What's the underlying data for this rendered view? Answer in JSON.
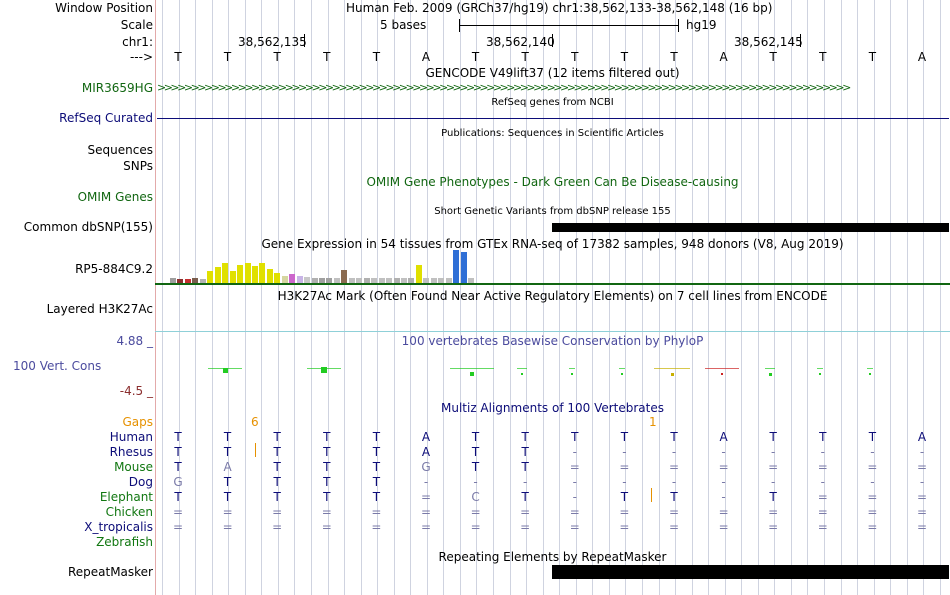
{
  "colors": {
    "accent": "#ff0000",
    "gencode": "#116611",
    "refseq": "#0c0c78",
    "conservation": "#4b4b9e",
    "gaps": "#e69100",
    "align_green": "#117711",
    "align_blue": "#0c0c78"
  },
  "header": {
    "window_position_label": "Window Position",
    "window_position_value": "Human Feb. 2009 (GRCh37/hg19)   chr1:38,562,133-38,562,148 (16 bp)",
    "scale_label": "Scale",
    "scale_value": "5 bases",
    "scale_assembly": "hg19",
    "chrom_label": "chr1:",
    "positions": [
      "38,562,135",
      "38,562,140",
      "38,562,145"
    ],
    "strand_label": "--->",
    "bases": [
      "T",
      "T",
      "T",
      "T",
      "T",
      "A",
      "T",
      "T",
      "T",
      "T",
      "T",
      "A",
      "T",
      "T",
      "T",
      "A"
    ]
  },
  "tracks": {
    "gencode": {
      "title": "GENCODE V49lift37 (12 items filtered out)",
      "label": "MIR3659HG",
      "arrows": ">>>>>>>>>>>>>>>>>>>>>>>>>>>>>>>>>>>>>>>>>>>>>>>>>>>>>>>>>>>>>>>>>>>>>>>>>>>>>>>>>>>>>>>>>>>>>>>>>>>>>>>"
    },
    "refseq": {
      "title": "RefSeq genes from NCBI",
      "label": "RefSeq Curated"
    },
    "publications": {
      "title": "Publications: Sequences in Scientific Articles",
      "label_sequences": "Sequences",
      "label_snps": "SNPs"
    },
    "omim": {
      "title": "OMIM Gene Phenotypes - Dark Green Can Be Disease-causing",
      "label": "OMIM Genes"
    },
    "dbsnp": {
      "title": "Short Genetic Variants from dbSNP release 155",
      "label": "Common dbSNP(155)"
    },
    "gtex": {
      "title": "Gene Expression in 54 tissues from GTEx RNA-seq of 17382 samples, 948 donors (V8, Aug 2019)",
      "label": "RP5-884C9.2"
    },
    "h3k27ac": {
      "title": "H3K27Ac Mark (Often Found Near Active Regulatory Elements) on 7 cell lines from ENCODE",
      "label": "Layered H3K27Ac"
    },
    "phylop": {
      "title": "100 vertebrates Basewise Conservation by PhyloP",
      "label": "100 Vert. Cons",
      "max": "4.88 _",
      "min": "-4.5 _"
    },
    "multiz": {
      "title": "Multiz Alignments of 100 Vertebrates",
      "gaps_label": "Gaps",
      "gap_count_1": "6",
      "gap_count_2": "1"
    },
    "repeatmasker": {
      "title": "Repeating Elements by RepeatMasker",
      "label": "RepeatMasker"
    }
  },
  "gtex_bars": [
    {
      "color": "#9e9e9e",
      "value": 0.14
    },
    {
      "color": "#8b2e2e",
      "value": 0.13
    },
    {
      "color": "#c42f2f",
      "value": 0.11
    },
    {
      "color": "#7a5d4e",
      "value": 0.15
    },
    {
      "color": "#b3b3b3",
      "value": 0.13
    },
    {
      "color": "#e0e000",
      "value": 0.37
    },
    {
      "color": "#e0e000",
      "value": 0.47
    },
    {
      "color": "#e0e000",
      "value": 0.6
    },
    {
      "color": "#e0e000",
      "value": 0.35
    },
    {
      "color": "#e0e000",
      "value": 0.55
    },
    {
      "color": "#e0e000",
      "value": 0.6
    },
    {
      "color": "#e0e000",
      "value": 0.5
    },
    {
      "color": "#e0e000",
      "value": 0.6
    },
    {
      "color": "#e0e000",
      "value": 0.42
    },
    {
      "color": "#e0e000",
      "value": 0.3
    },
    {
      "color": "#d6d6a0",
      "value": 0.2
    },
    {
      "color": "#cc66cc",
      "value": 0.28
    },
    {
      "color": "#c8b4e6",
      "value": 0.22
    },
    {
      "color": "#c8c8c8",
      "value": 0.17
    },
    {
      "color": "#b0b0b0",
      "value": 0.15
    },
    {
      "color": "#a0a0a0",
      "value": 0.16
    },
    {
      "color": "#a0a0a0",
      "value": 0.14
    },
    {
      "color": "#c0c0c0",
      "value": 0.16
    },
    {
      "color": "#8b6b50",
      "value": 0.4
    },
    {
      "color": "#c0c0c0",
      "value": 0.15
    },
    {
      "color": "#c0c0c0",
      "value": 0.14
    },
    {
      "color": "#b0b0b0",
      "value": 0.14
    },
    {
      "color": "#c0c0c0",
      "value": 0.14
    },
    {
      "color": "#c0c0c0",
      "value": 0.14
    },
    {
      "color": "#c0c0c0",
      "value": 0.15
    },
    {
      "color": "#b0b0b0",
      "value": 0.14
    },
    {
      "color": "#c0c0c0",
      "value": 0.14
    },
    {
      "color": "#b0b0b0",
      "value": 0.14
    },
    {
      "color": "#e0e000",
      "value": 0.55
    },
    {
      "color": "#c0c0c0",
      "value": 0.16
    },
    {
      "color": "#c0c0c0",
      "value": 0.15
    },
    {
      "color": "#c0c0c0",
      "value": 0.14
    },
    {
      "color": "#c0c0c0",
      "value": 0.14
    },
    {
      "color": "#2f6fd6",
      "value": 1.0
    },
    {
      "color": "#2f6fd6",
      "value": 0.93
    },
    {
      "color": "#c0c0c0",
      "value": 0.15
    }
  ],
  "alignments": [
    {
      "species": "Human",
      "color": "#0c0c78",
      "bases": [
        "T",
        "T",
        "T",
        "T",
        "T",
        "A",
        "T",
        "T",
        "T",
        "T",
        "T",
        "A",
        "T",
        "T",
        "T",
        "A"
      ]
    },
    {
      "species": "Rhesus",
      "color": "#0c0c78",
      "bases": [
        "T",
        "T",
        "T",
        "T",
        "T",
        "A",
        "T",
        "T",
        "-",
        "-",
        "-",
        "-",
        "-",
        "-",
        "-",
        "-"
      ]
    },
    {
      "species": "Mouse",
      "color": "#117711",
      "bases": [
        "T",
        "A",
        "T",
        "T",
        "T",
        "G",
        "T",
        "T",
        "=",
        "=",
        "=",
        "=",
        "=",
        "=",
        "=",
        "="
      ]
    },
    {
      "species": "Dog",
      "color": "#0c0c78",
      "bases": [
        "G",
        "T",
        "T",
        "T",
        "T",
        "-",
        "-",
        "-",
        "-",
        "-",
        "-",
        "-",
        "-",
        "-",
        "-",
        "-"
      ]
    },
    {
      "species": "Elephant",
      "color": "#117711",
      "bases": [
        "T",
        "T",
        "T",
        "T",
        "T",
        "=",
        "C",
        "T",
        "-",
        "T",
        "T",
        "-",
        "T",
        "=",
        "=",
        "="
      ]
    },
    {
      "species": "Chicken",
      "color": "#117711",
      "bases": [
        "=",
        "=",
        "=",
        "=",
        "=",
        "=",
        "=",
        "=",
        "=",
        "=",
        "=",
        "=",
        "=",
        "=",
        "=",
        "="
      ]
    },
    {
      "species": "X_tropicalis",
      "color": "#0c0c78",
      "bases": [
        "=",
        "=",
        "=",
        "=",
        "=",
        "=",
        "=",
        "=",
        "=",
        "=",
        "=",
        "=",
        "=",
        "=",
        "=",
        "="
      ]
    },
    {
      "species": "Zebrafish",
      "color": "#117711",
      "bases": [
        "",
        "",
        "",
        "",
        "",
        "",
        "",
        "",
        "",
        "",
        "",
        "",
        "",
        "",
        "",
        ""
      ]
    }
  ]
}
